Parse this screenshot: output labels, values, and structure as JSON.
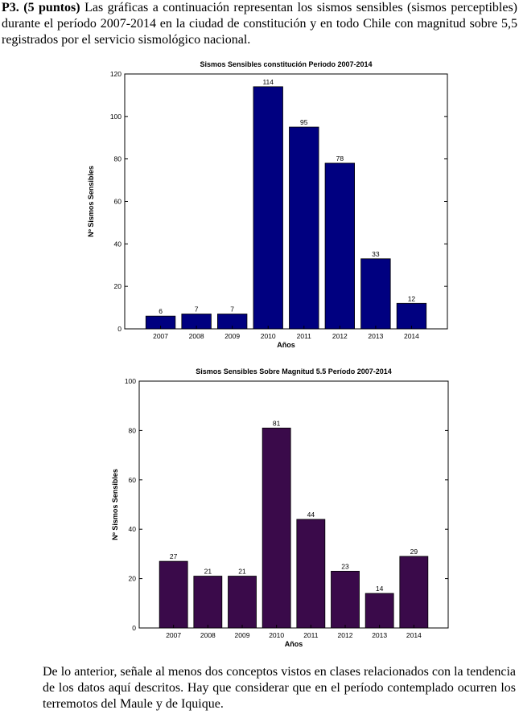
{
  "question": {
    "number": "P3. (5 puntos)",
    "intro": " Las gráficas a continuación representan los sismos sensibles (sismos perceptibles) durante el período 2007-2014 en la ciudad de constitución y en todo Chile con magnitud sobre 5,5 registrados por el servicio sismológico nacional."
  },
  "closing_text": "De lo anterior, señale al menos dos conceptos vistos en clases relacionados con la tendencia de los datos aquí descritos. Hay que considerar que en el período contemplado ocurren los terremotos del Maule y de Iquique.",
  "chart_data": [
    {
      "type": "bar",
      "title": "Sismos Sensibles constitución Periodo 2007-2014",
      "xlabel": "Años",
      "ylabel": "Nº Sismos Sensibles",
      "categories": [
        "2007",
        "2008",
        "2009",
        "2010",
        "2011",
        "2012",
        "2013",
        "2014"
      ],
      "values": [
        6,
        7,
        7,
        114,
        95,
        78,
        33,
        12
      ],
      "ylim": [
        0,
        120
      ],
      "yticks": [
        0,
        20,
        40,
        60,
        80,
        100,
        120
      ],
      "bar_color": "#000080",
      "grid": false
    },
    {
      "type": "bar",
      "title": "Sismos Sensibles Sobre Magnitud 5.5 Período 2007-2014",
      "xlabel": "Años",
      "ylabel": "Nº Sismos Sensibles",
      "categories": [
        "2007",
        "2008",
        "2009",
        "2010",
        "2011",
        "2012",
        "2013",
        "2014"
      ],
      "values": [
        27,
        21,
        21,
        81,
        44,
        23,
        14,
        29
      ],
      "ylim": [
        0,
        100
      ],
      "yticks": [
        0,
        20,
        40,
        60,
        80,
        100
      ],
      "bar_color": "#3a0a4a",
      "grid": false
    }
  ]
}
